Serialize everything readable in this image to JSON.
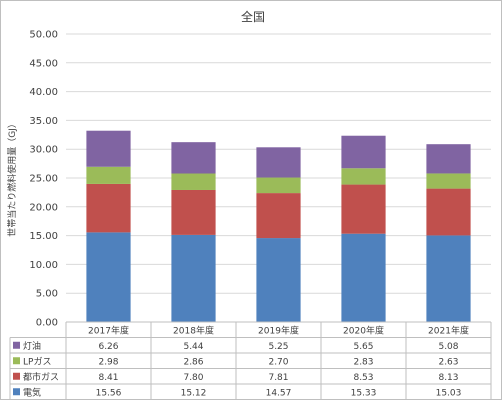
{
  "chart_data": {
    "type": "bar",
    "stacked": true,
    "title": "全国",
    "ylabel": "世帯当たり燃料使用量（GJ）",
    "xlabel": "",
    "ylim": [
      0,
      50
    ],
    "yticks": [
      "0.00",
      "5.00",
      "10.00",
      "15.00",
      "20.00",
      "25.00",
      "30.00",
      "35.00",
      "40.00",
      "45.00",
      "50.00"
    ],
    "grid": true,
    "legend": "data-table-left",
    "categories": [
      "2017年度",
      "2018年度",
      "2019年度",
      "2020年度",
      "2021年度"
    ],
    "series": [
      {
        "name": "電気",
        "color": "#4F81BD",
        "values": [
          15.56,
          15.12,
          14.57,
          15.33,
          15.03
        ],
        "labels": [
          "15.56",
          "15.12",
          "14.57",
          "15.33",
          "15.03"
        ]
      },
      {
        "name": "都市ガス",
        "color": "#C0504D",
        "values": [
          8.41,
          7.8,
          7.81,
          8.53,
          8.13
        ],
        "labels": [
          "8.41",
          "7.80",
          "7.81",
          "8.53",
          "8.13"
        ]
      },
      {
        "name": "LPガス",
        "color": "#9BBB59",
        "values": [
          2.98,
          2.86,
          2.7,
          2.83,
          2.63
        ],
        "labels": [
          "2.98",
          "2.86",
          "2.70",
          "2.83",
          "2.63"
        ]
      },
      {
        "name": "灯油",
        "color": "#8064A2",
        "values": [
          6.26,
          5.44,
          5.25,
          5.65,
          5.08
        ],
        "labels": [
          "6.26",
          "5.44",
          "5.25",
          "5.65",
          "5.08"
        ]
      }
    ]
  }
}
